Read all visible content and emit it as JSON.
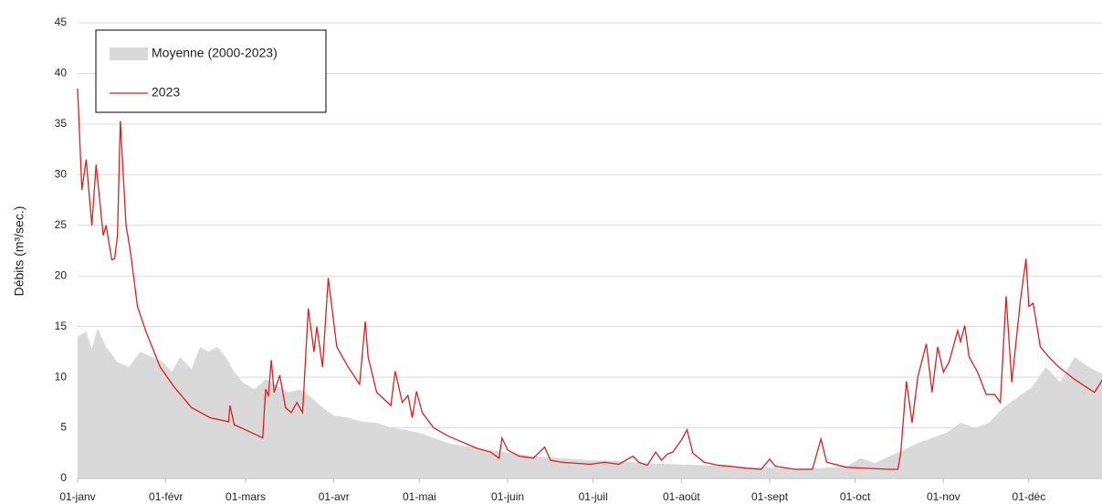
{
  "chart_data": {
    "type": "line",
    "ylabel": "Débits  (m³/sec.)",
    "xlim": [
      0,
      360
    ],
    "ylim": [
      0,
      45
    ],
    "yticks": [
      0,
      5,
      10,
      15,
      20,
      25,
      30,
      35,
      40,
      45
    ],
    "xticks": [
      {
        "value": 0,
        "label": "01-janv"
      },
      {
        "value": 31,
        "label": "01-févr"
      },
      {
        "value": 59,
        "label": "01-mars"
      },
      {
        "value": 90,
        "label": "01-avr"
      },
      {
        "value": 120,
        "label": "01-mai"
      },
      {
        "value": 151,
        "label": "01-juin"
      },
      {
        "value": 181,
        "label": "01-juil"
      },
      {
        "value": 212,
        "label": "01-août"
      },
      {
        "value": 243,
        "label": "01-sept"
      },
      {
        "value": 273,
        "label": "01-oct"
      },
      {
        "value": 304,
        "label": "01-nov"
      },
      {
        "value": 334,
        "label": "01-déc"
      }
    ],
    "grid": true,
    "legend": "upper left",
    "series": [
      {
        "name": "Moyenne (2000-2023)",
        "kind": "area",
        "color": "#d9d9d9",
        "x": [
          0,
          3,
          5,
          7,
          10,
          14,
          18,
          22,
          26,
          30,
          33,
          36,
          40,
          43,
          46,
          49,
          52,
          55,
          58,
          62,
          66,
          70,
          74,
          78,
          82,
          86,
          90,
          95,
          100,
          105,
          110,
          115,
          120,
          125,
          130,
          140,
          150,
          160,
          170,
          180,
          190,
          200,
          210,
          220,
          230,
          240,
          250,
          260,
          270,
          275,
          280,
          285,
          290,
          295,
          300,
          305,
          310,
          315,
          320,
          325,
          330,
          335,
          340,
          345,
          350,
          355,
          360
        ],
        "values": [
          14,
          14.5,
          12.8,
          14.8,
          13,
          11.5,
          11,
          12.5,
          12,
          11.5,
          10.5,
          12,
          10.8,
          13,
          12.5,
          13,
          12,
          10.5,
          9.5,
          8.8,
          9.8,
          9.2,
          8.5,
          8.8,
          8,
          7,
          6.2,
          6,
          5.6,
          5.5,
          5,
          4.8,
          4.5,
          4,
          3.5,
          3,
          2.6,
          2.2,
          2,
          1.8,
          1.7,
          1.5,
          1.4,
          1.3,
          1.2,
          1.1,
          1,
          1,
          1.2,
          2,
          1.5,
          2.2,
          2.8,
          3.5,
          4,
          4.5,
          5.5,
          5,
          5.5,
          7,
          8,
          9,
          11,
          9.5,
          12,
          11,
          10.3
        ]
      },
      {
        "name": "2023",
        "kind": "line",
        "color": "#e01e1e",
        "x": [
          0,
          1.5,
          3,
          5,
          6.5,
          9,
          10,
          12,
          13,
          14,
          15,
          17,
          18.5,
          21,
          24,
          29,
          34,
          40,
          46.5,
          53,
          53.5,
          55,
          59,
          62,
          65,
          66,
          67,
          68,
          69,
          71,
          73,
          75,
          77,
          79,
          81,
          83,
          84,
          86,
          88,
          91,
          95,
          99,
          101,
          102,
          105,
          110,
          111.5,
          114,
          116,
          117.5,
          119,
          121,
          125,
          130,
          135,
          140,
          145,
          148,
          149,
          151,
          155,
          160,
          164,
          166,
          170,
          175,
          180,
          185,
          190,
          195,
          197,
          200,
          203,
          205,
          207,
          209,
          212,
          214,
          216,
          220,
          225,
          229,
          235,
          240,
          243,
          245,
          252,
          258,
          261,
          263,
          270,
          277,
          285,
          288,
          289,
          291,
          293,
          295,
          298,
          300,
          302,
          304,
          306,
          309,
          310,
          311.5,
          313,
          316,
          319,
          322,
          324,
          326,
          328,
          331,
          333,
          334,
          335.5,
          338,
          341,
          344.5,
          350,
          357,
          360
        ],
        "values": [
          38.5,
          28.5,
          31.5,
          25,
          31,
          24,
          25,
          21.6,
          21.7,
          24,
          35.3,
          25,
          22.5,
          17,
          14.5,
          11,
          9,
          7,
          6,
          5.6,
          7.2,
          5.3,
          4.8,
          4.4,
          4,
          8.8,
          8.2,
          11.7,
          8.5,
          10.2,
          7,
          6.5,
          7.5,
          6.5,
          16.8,
          12.5,
          15,
          11,
          19.8,
          13,
          11,
          9.3,
          15.5,
          12,
          8.5,
          7.2,
          10.6,
          7.5,
          8.2,
          6,
          8.6,
          6.5,
          5,
          4.2,
          3.6,
          3,
          2.6,
          2,
          4,
          2.8,
          2.2,
          2,
          3.1,
          1.8,
          1.6,
          1.5,
          1.4,
          1.6,
          1.4,
          2.2,
          1.6,
          1.3,
          2.6,
          1.8,
          2.4,
          2.6,
          3.8,
          4.8,
          2.5,
          1.6,
          1.3,
          1.2,
          1,
          0.9,
          1.9,
          1.2,
          0.9,
          0.9,
          3.9,
          1.6,
          1.1,
          1,
          0.9,
          0.9,
          2.5,
          9.6,
          5.5,
          10,
          13.3,
          8.5,
          13,
          10.5,
          11.5,
          14.6,
          13.5,
          15.1,
          12,
          10.5,
          8.3,
          8.3,
          7.5,
          18,
          9.5,
          17.5,
          21.7,
          17,
          17.3,
          13,
          12,
          11,
          9.8,
          8.5,
          9.8
        ]
      }
    ]
  }
}
